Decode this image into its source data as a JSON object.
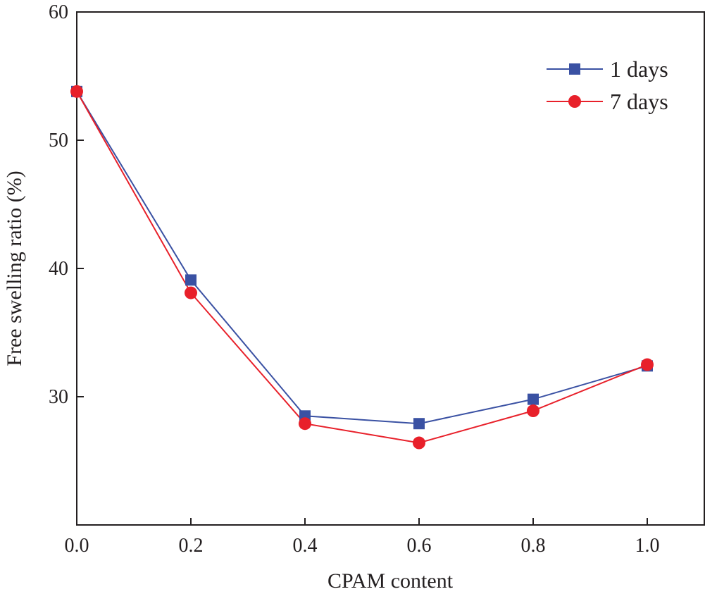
{
  "chart_data": {
    "type": "line",
    "title": "",
    "xlabel": "CPAM content",
    "ylabel": "Free swelling ratio (%)",
    "xlim": [
      0.0,
      1.1
    ],
    "ylim": [
      20,
      60
    ],
    "xticks": [
      "0.0",
      "0.2",
      "0.4",
      "0.6",
      "0.8",
      "1.0"
    ],
    "yticks": [
      "30",
      "40",
      "50",
      "60"
    ],
    "grid": false,
    "legend_position": "top-right",
    "x": [
      0.0,
      0.2,
      0.4,
      0.6,
      0.8,
      1.0
    ],
    "series": [
      {
        "name": "1 days",
        "marker": "square",
        "color": "#3a51a3",
        "values": [
          53.8,
          39.1,
          28.5,
          27.9,
          29.8,
          32.4
        ]
      },
      {
        "name": "7 days",
        "marker": "circle",
        "color": "#e8202a",
        "values": [
          53.8,
          38.1,
          27.9,
          26.4,
          28.9,
          32.5
        ]
      }
    ]
  }
}
